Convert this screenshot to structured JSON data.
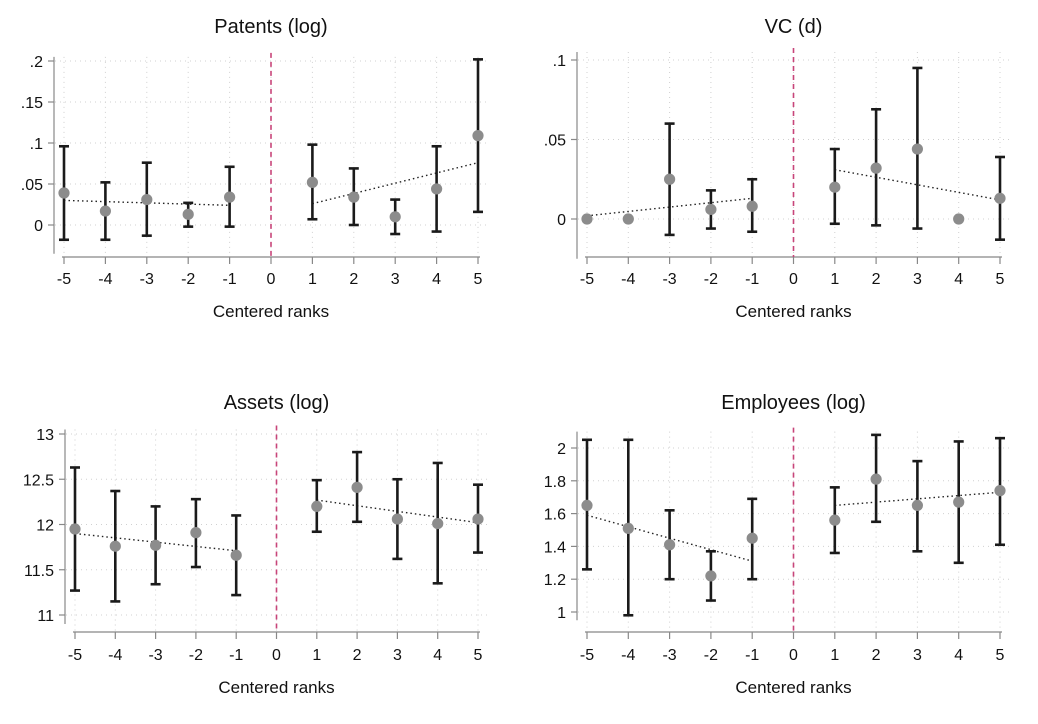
{
  "chart_data": [
    {
      "type": "scatter",
      "title": "Patents (log)",
      "xlabel": "Centered ranks",
      "xticks": [
        "-5",
        "-4",
        "-3",
        "-2",
        "-1",
        "0",
        "1",
        "2",
        "3",
        "4",
        "5"
      ],
      "yticks": [
        ".2",
        ".15",
        ".1",
        ".05",
        "0"
      ],
      "ylim": [
        -0.035,
        0.205
      ],
      "grid": true,
      "cutoff_x": 0,
      "points": [
        {
          "x": -5,
          "y": 0.039,
          "lo": -0.018,
          "hi": 0.096
        },
        {
          "x": -4,
          "y": 0.017,
          "lo": -0.018,
          "hi": 0.052
        },
        {
          "x": -3,
          "y": 0.031,
          "lo": -0.013,
          "hi": 0.076
        },
        {
          "x": -2,
          "y": 0.013,
          "lo": -0.002,
          "hi": 0.027
        },
        {
          "x": -1,
          "y": 0.034,
          "lo": -0.002,
          "hi": 0.071
        },
        {
          "x": 1,
          "y": 0.052,
          "lo": 0.007,
          "hi": 0.098
        },
        {
          "x": 2,
          "y": 0.034,
          "lo": 0.0,
          "hi": 0.069
        },
        {
          "x": 3,
          "y": 0.01,
          "lo": -0.011,
          "hi": 0.031
        },
        {
          "x": 4,
          "y": 0.044,
          "lo": -0.008,
          "hi": 0.096
        },
        {
          "x": 5,
          "y": 0.109,
          "lo": 0.016,
          "hi": 0.202
        }
      ],
      "fit_left": [
        [
          -5,
          0.03
        ],
        [
          -1,
          0.024
        ]
      ],
      "fit_right": [
        [
          1,
          0.026
        ],
        [
          5,
          0.076
        ]
      ]
    },
    {
      "type": "scatter",
      "title": "VC (d)",
      "xlabel": "Centered ranks",
      "xticks": [
        "-5",
        "-4",
        "-3",
        "-2",
        "-1",
        "0",
        "1",
        "2",
        "3",
        "4",
        "5"
      ],
      "yticks": [
        ".1",
        ".05",
        "0"
      ],
      "ylim": [
        -0.025,
        0.105
      ],
      "grid": true,
      "cutoff_x": 0,
      "points": [
        {
          "x": -5,
          "y": 0.0,
          "lo": 0.0,
          "hi": 0.0
        },
        {
          "x": -4,
          "y": 0.0,
          "lo": 0.0,
          "hi": 0.0
        },
        {
          "x": -3,
          "y": 0.025,
          "lo": -0.01,
          "hi": 0.06
        },
        {
          "x": -2,
          "y": 0.006,
          "lo": -0.006,
          "hi": 0.018
        },
        {
          "x": -1,
          "y": 0.008,
          "lo": -0.008,
          "hi": 0.025
        },
        {
          "x": 1,
          "y": 0.02,
          "lo": -0.003,
          "hi": 0.044
        },
        {
          "x": 2,
          "y": 0.032,
          "lo": -0.004,
          "hi": 0.069
        },
        {
          "x": 3,
          "y": 0.044,
          "lo": -0.006,
          "hi": 0.095
        },
        {
          "x": 4,
          "y": 0.0,
          "lo": 0.0,
          "hi": 0.0
        },
        {
          "x": 5,
          "y": 0.013,
          "lo": -0.013,
          "hi": 0.039
        }
      ],
      "fit_left": [
        [
          -5,
          0.002
        ],
        [
          -1,
          0.013
        ]
      ],
      "fit_right": [
        [
          1,
          0.031
        ],
        [
          5,
          0.012
        ]
      ]
    },
    {
      "type": "scatter",
      "title": "Assets (log)",
      "xlabel": "Centered ranks",
      "xticks": [
        "-5",
        "-4",
        "-3",
        "-2",
        "-1",
        "0",
        "1",
        "2",
        "3",
        "4",
        "5"
      ],
      "yticks": [
        "13",
        "12.5",
        "12",
        "11.5",
        "11"
      ],
      "ylim": [
        10.9,
        13.05
      ],
      "grid": true,
      "cutoff_x": 0,
      "points": [
        {
          "x": -5,
          "y": 11.95,
          "lo": 11.27,
          "hi": 12.63
        },
        {
          "x": -4,
          "y": 11.76,
          "lo": 11.15,
          "hi": 12.37
        },
        {
          "x": -3,
          "y": 11.77,
          "lo": 11.34,
          "hi": 12.2
        },
        {
          "x": -2,
          "y": 11.91,
          "lo": 11.53,
          "hi": 12.28
        },
        {
          "x": -1,
          "y": 11.66,
          "lo": 11.22,
          "hi": 12.1
        },
        {
          "x": 1,
          "y": 12.2,
          "lo": 11.92,
          "hi": 12.49
        },
        {
          "x": 2,
          "y": 12.41,
          "lo": 12.03,
          "hi": 12.8
        },
        {
          "x": 3,
          "y": 12.06,
          "lo": 11.62,
          "hi": 12.5
        },
        {
          "x": 4,
          "y": 12.01,
          "lo": 11.35,
          "hi": 12.68
        },
        {
          "x": 5,
          "y": 12.06,
          "lo": 11.69,
          "hi": 12.44
        }
      ],
      "fit_left": [
        [
          -5,
          11.9
        ],
        [
          -1,
          11.71
        ]
      ],
      "fit_right": [
        [
          1,
          12.27
        ],
        [
          5,
          12.02
        ]
      ]
    },
    {
      "type": "scatter",
      "title": "Employees (log)",
      "xlabel": "Centered ranks",
      "xticks": [
        "-5",
        "-4",
        "-3",
        "-2",
        "-1",
        "0",
        "1",
        "2",
        "3",
        "4",
        "5"
      ],
      "yticks": [
        "2",
        "1.8",
        "1.6",
        "1.4",
        "1.2",
        "1"
      ],
      "ylim": [
        0.95,
        2.1
      ],
      "grid": true,
      "cutoff_x": 0,
      "points": [
        {
          "x": -5,
          "y": 1.65,
          "lo": 1.26,
          "hi": 2.05
        },
        {
          "x": -4,
          "y": 1.51,
          "lo": 0.98,
          "hi": 2.05
        },
        {
          "x": -3,
          "y": 1.41,
          "lo": 1.2,
          "hi": 1.62
        },
        {
          "x": -2,
          "y": 1.22,
          "lo": 1.07,
          "hi": 1.37
        },
        {
          "x": -1,
          "y": 1.45,
          "lo": 1.2,
          "hi": 1.69
        },
        {
          "x": 1,
          "y": 1.56,
          "lo": 1.36,
          "hi": 1.76
        },
        {
          "x": 2,
          "y": 1.81,
          "lo": 1.55,
          "hi": 2.08
        },
        {
          "x": 3,
          "y": 1.65,
          "lo": 1.37,
          "hi": 1.92
        },
        {
          "x": 4,
          "y": 1.67,
          "lo": 1.3,
          "hi": 2.04
        },
        {
          "x": 5,
          "y": 1.74,
          "lo": 1.41,
          "hi": 2.06
        }
      ],
      "fit_left": [
        [
          -5,
          1.59
        ],
        [
          -1,
          1.31
        ]
      ],
      "fit_right": [
        [
          1,
          1.65
        ],
        [
          5,
          1.73
        ]
      ]
    }
  ]
}
